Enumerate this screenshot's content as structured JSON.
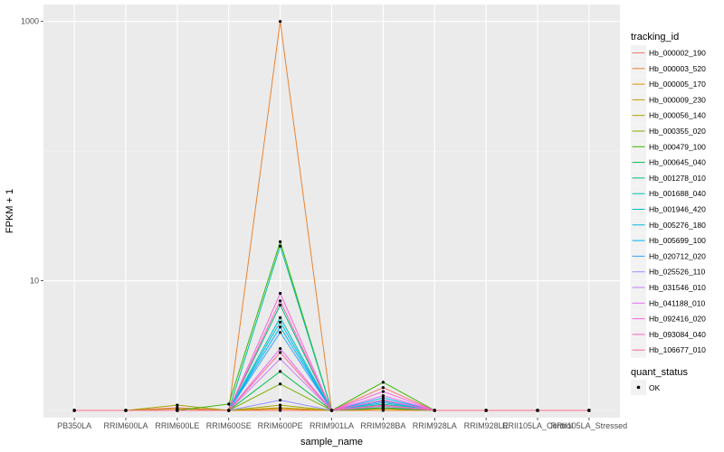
{
  "chart_data": {
    "type": "line",
    "xlabel": "sample_name",
    "ylabel": "FPKM + 1",
    "y_scale": "log10",
    "ylim": [
      0.88,
      1350
    ],
    "y_ticks": [
      10,
      1000
    ],
    "y_tick_labels": [
      "10",
      "1000"
    ],
    "grid": true,
    "background": "#ebebeb",
    "legend_placement": "right",
    "categories": [
      "PB350LA",
      "RRIM600LA",
      "RRIM600LE",
      "RRIM600SE",
      "RRIM600PE",
      "RRIM901LA",
      "RRIM928BA",
      "RRIM928LA",
      "RRIM928LE",
      "RRII105LA_Control",
      "RRII105LA_Stressed"
    ],
    "legend_title": "tracking_id",
    "series": [
      {
        "name": "Hb_000002_190",
        "color": "#F8766D",
        "values": [
          1,
          1,
          1.05,
          1,
          1,
          1,
          1.5,
          1,
          1,
          1,
          1
        ]
      },
      {
        "name": "Hb_000003_520",
        "color": "#EA8331",
        "values": [
          1,
          1,
          1,
          1,
          1000,
          1,
          1,
          1,
          1,
          1,
          1
        ]
      },
      {
        "name": "Hb_000005_170",
        "color": "#D89000",
        "values": [
          1,
          1,
          1,
          1,
          1.03,
          1,
          1.03,
          1,
          1,
          1,
          1
        ]
      },
      {
        "name": "Hb_000009_230",
        "color": "#C09B00",
        "values": [
          1,
          1,
          1.03,
          1,
          1.05,
          1,
          1.03,
          1,
          1,
          1,
          1
        ]
      },
      {
        "name": "Hb_000056_140",
        "color": "#A3A500",
        "values": [
          1,
          1,
          1.1,
          1,
          1.1,
          1,
          1.05,
          1,
          1,
          1,
          1
        ]
      },
      {
        "name": "Hb_000355_020",
        "color": "#7CAE00",
        "values": [
          1,
          1,
          1,
          1,
          1.6,
          1,
          1.08,
          1,
          1,
          1,
          1
        ]
      },
      {
        "name": "Hb_000479_100",
        "color": "#39B600",
        "values": [
          1,
          1,
          1,
          1.12,
          20,
          1,
          1.65,
          1,
          1,
          1,
          1
        ]
      },
      {
        "name": "Hb_000645_040",
        "color": "#00BB4E",
        "values": [
          1,
          1,
          1,
          1,
          2,
          1,
          1.05,
          1,
          1,
          1,
          1
        ]
      },
      {
        "name": "Hb_001278_010",
        "color": "#00BF7D",
        "values": [
          1,
          1,
          1,
          1,
          6.5,
          1,
          1.1,
          1,
          1,
          1,
          1
        ]
      },
      {
        "name": "Hb_001688_040",
        "color": "#00C1A3",
        "values": [
          1,
          1,
          1,
          1,
          18.5,
          1,
          1.12,
          1,
          1,
          1,
          1
        ]
      },
      {
        "name": "Hb_001946_420",
        "color": "#00BFC4",
        "values": [
          1,
          1,
          1,
          1,
          5.2,
          1,
          1.2,
          1,
          1,
          1,
          1
        ]
      },
      {
        "name": "Hb_005276_180",
        "color": "#00BAE0",
        "values": [
          1,
          1,
          1,
          1,
          4.8,
          1,
          1.15,
          1,
          1,
          1,
          1
        ]
      },
      {
        "name": "Hb_005699_100",
        "color": "#00B0F6",
        "values": [
          1,
          1,
          1,
          1,
          4.4,
          1,
          1.25,
          1,
          1,
          1,
          1
        ]
      },
      {
        "name": "Hb_020712_020",
        "color": "#35A2FF",
        "values": [
          1,
          1,
          1,
          1,
          4.0,
          1,
          1.18,
          1,
          1,
          1,
          1
        ]
      },
      {
        "name": "Hb_025526_110",
        "color": "#9590FF",
        "values": [
          1,
          1,
          1,
          1,
          1.2,
          1,
          1.1,
          1,
          1,
          1,
          1
        ]
      },
      {
        "name": "Hb_031546_010",
        "color": "#C77CFF",
        "values": [
          1,
          1,
          1,
          1,
          2.5,
          1,
          1.08,
          1,
          1,
          1,
          1
        ]
      },
      {
        "name": "Hb_041188_010",
        "color": "#E76BF3",
        "values": [
          1,
          1,
          1,
          1,
          3.0,
          1,
          1.3,
          1,
          1,
          1,
          1
        ]
      },
      {
        "name": "Hb_092416_020",
        "color": "#FA62DB",
        "values": [
          1,
          1,
          1,
          1,
          8.0,
          1,
          1.4,
          1,
          1,
          1,
          1
        ]
      },
      {
        "name": "Hb_093084_040",
        "color": "#FF62BC",
        "values": [
          1,
          1,
          1,
          1,
          7.0,
          1,
          1.2,
          1,
          1,
          1,
          1
        ]
      },
      {
        "name": "Hb_106677_010",
        "color": "#FF6C91",
        "values": [
          1,
          1,
          1,
          1,
          2.8,
          1,
          1.1,
          1,
          1,
          1,
          1
        ]
      }
    ],
    "point_legend_title": "quant_status",
    "point_legend_label": "OK",
    "point_color": "#000000"
  }
}
